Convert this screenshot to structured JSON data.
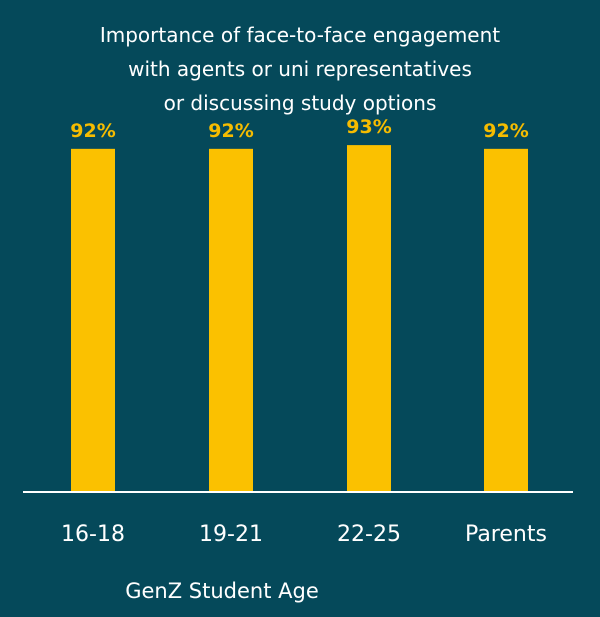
{
  "chart_data": {
    "type": "bar",
    "title_lines": [
      "Importance of face-to-face engagement",
      "with agents or uni representatives",
      "or discussing study options"
    ],
    "categories": [
      "16-18",
      "19-21",
      "22-25",
      "Parents"
    ],
    "values": [
      92,
      92,
      93,
      92
    ],
    "value_labels": [
      "92%",
      "92%",
      "93%",
      "92%"
    ],
    "xlabel": "GenZ Student Age",
    "ylabel": "",
    "ylim": [
      0,
      100
    ],
    "grid": false,
    "colors": {
      "background": "#05495a",
      "bar": "#fbc100",
      "value_label": "#f6bc00",
      "text": "#ffffff",
      "axis": "#ffffff"
    }
  }
}
